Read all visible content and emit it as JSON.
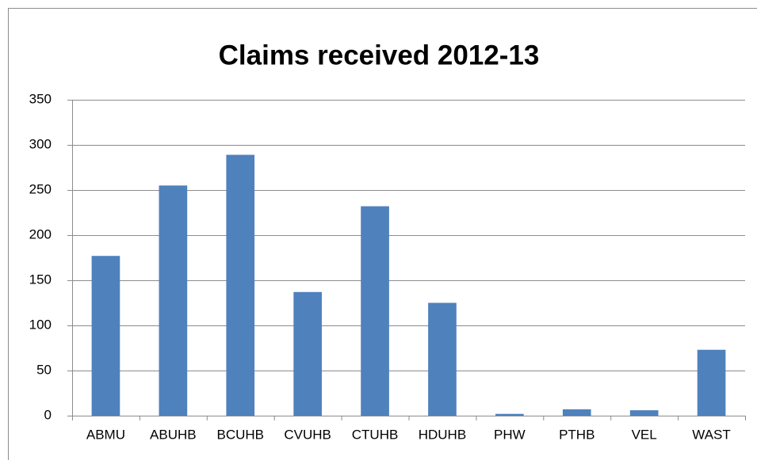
{
  "chart_data": {
    "type": "bar",
    "title": "Claims received 2012-13",
    "categories": [
      "ABMU",
      "ABUHB",
      "BCUHB",
      "CVUHB",
      "CTUHB",
      "HDUHB",
      "PHW",
      "PTHB",
      "VEL",
      "WAST"
    ],
    "values": [
      177,
      255,
      289,
      137,
      232,
      125,
      2,
      7,
      6,
      73
    ],
    "color": "#4f81bd",
    "ylim": [
      0,
      350
    ],
    "yticks": [
      0,
      50,
      100,
      150,
      200,
      250,
      300,
      350
    ],
    "grid": true
  }
}
